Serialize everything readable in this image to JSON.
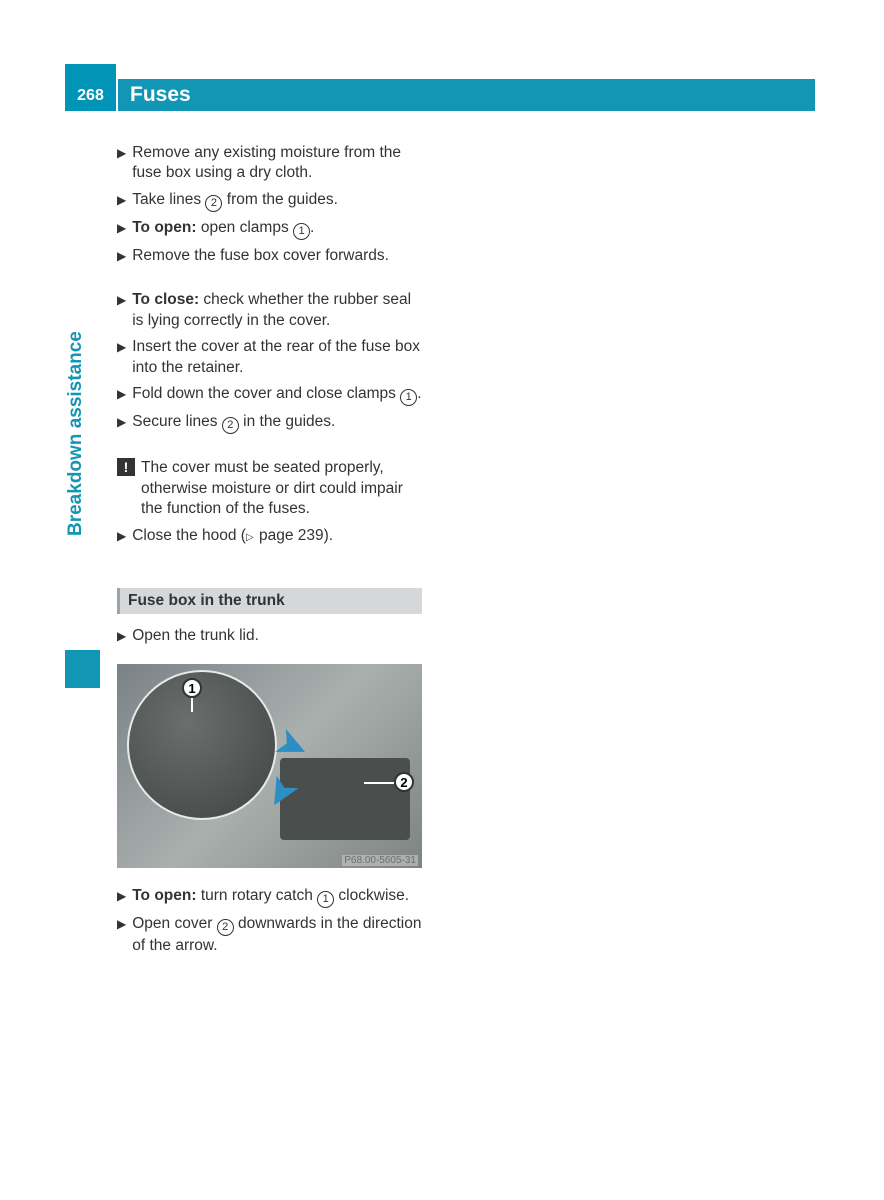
{
  "header": {
    "page_number": "268",
    "title": "Fuses"
  },
  "sidebar": {
    "label": "Breakdown assistance",
    "accent_color": "#1296b5"
  },
  "steps_a": [
    {
      "text_parts": [
        "Remove any existing moisture from the fuse box using a dry cloth."
      ]
    },
    {
      "text_parts": [
        "Take lines ",
        {
          "circled": "2"
        },
        " from the guides."
      ]
    },
    {
      "text_parts": [
        {
          "bold": "To open:"
        },
        " open clamps ",
        {
          "circled": "1"
        },
        "."
      ]
    },
    {
      "text_parts": [
        "Remove the fuse box cover forwards."
      ]
    }
  ],
  "steps_b": [
    {
      "text_parts": [
        {
          "bold": "To close:"
        },
        " check whether the rubber seal is lying correctly in the cover."
      ]
    },
    {
      "text_parts": [
        "Insert the cover at the rear of the fuse box into the retainer."
      ]
    },
    {
      "text_parts": [
        "Fold down the cover and close clamps ",
        {
          "circled": "1"
        },
        "."
      ]
    },
    {
      "text_parts": [
        "Secure lines ",
        {
          "circled": "2"
        },
        " in the guides."
      ]
    }
  ],
  "note": {
    "text": "The cover must be seated properly, otherwise moisture or dirt could impair the function of the fuses."
  },
  "steps_c": [
    {
      "text_parts": [
        "Close the hood (",
        {
          "tri": "▷"
        },
        " page 239)."
      ]
    }
  ],
  "subsection": {
    "title": "Fuse box in the trunk"
  },
  "steps_d": [
    {
      "text_parts": [
        "Open the trunk lid."
      ]
    }
  ],
  "image": {
    "callout1": "1",
    "callout2": "2",
    "code": "P68.00-5605-31"
  },
  "steps_e": [
    {
      "text_parts": [
        {
          "bold": "To open:"
        },
        " turn rotary catch ",
        {
          "circled": "1"
        },
        " clockwise."
      ]
    },
    {
      "text_parts": [
        "Open cover ",
        {
          "circled": "2"
        },
        " downwards in the direction of the arrow."
      ]
    }
  ]
}
